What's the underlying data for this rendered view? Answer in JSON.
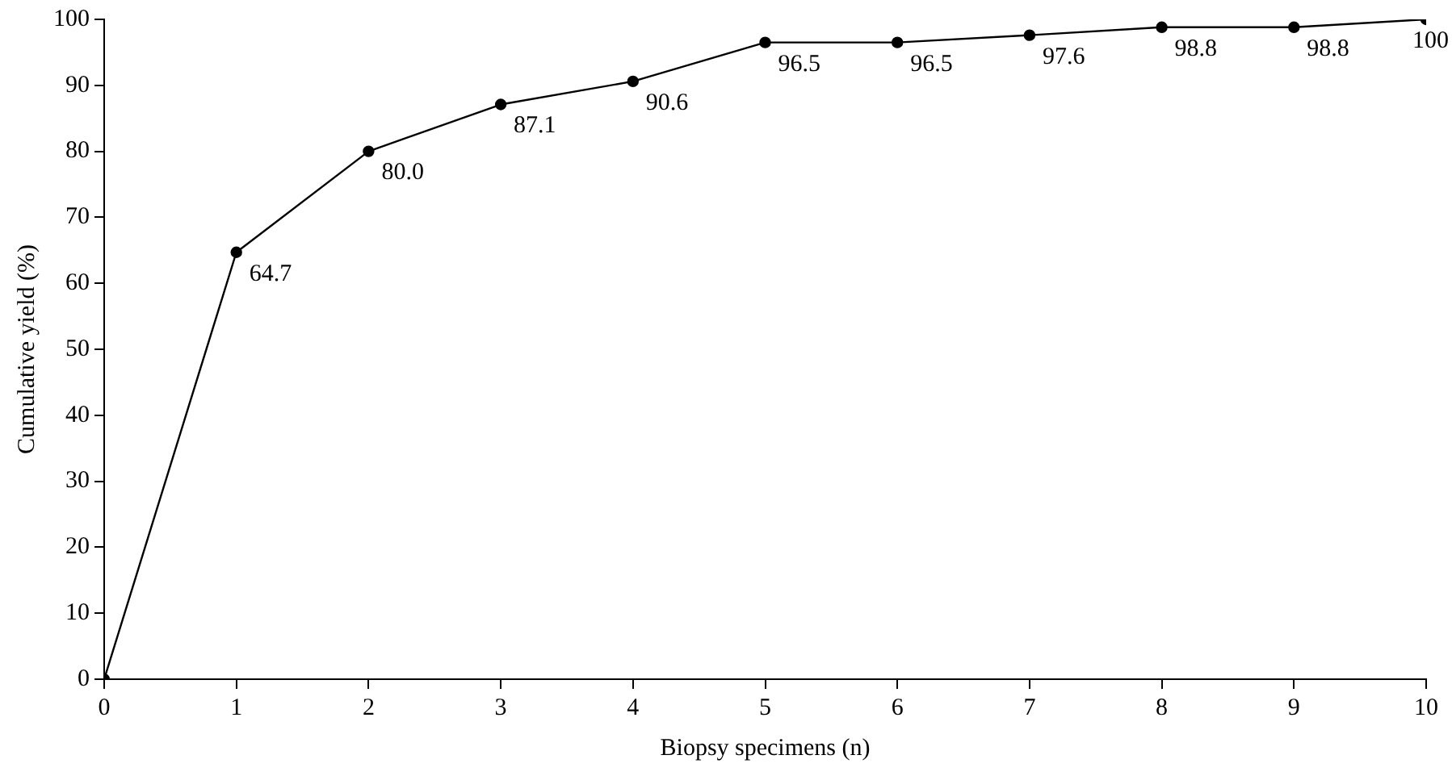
{
  "chart_data": {
    "type": "line",
    "xlabel": "Biopsy specimens (n)",
    "ylabel": "Cumulative yield (%)",
    "x": [
      0,
      1,
      2,
      3,
      4,
      5,
      6,
      7,
      8,
      9,
      10
    ],
    "values": [
      0,
      64.7,
      80.0,
      87.1,
      90.6,
      96.5,
      96.5,
      97.6,
      98.8,
      98.8,
      100
    ],
    "value_labels": [
      null,
      "64.7",
      "80.0",
      "87.1",
      "90.6",
      "96.5",
      "96.5",
      "97.6",
      "98.8",
      "98.8",
      "100"
    ],
    "color": "#000000",
    "marker": "circle",
    "line_style": "solid",
    "grid": false,
    "legend": false,
    "xlim": [
      0,
      10
    ],
    "xticks": [
      0,
      1,
      2,
      3,
      4,
      5,
      6,
      7,
      8,
      9,
      10
    ],
    "ylim": [
      0,
      100
    ],
    "yticks": [
      0,
      10,
      20,
      30,
      40,
      50,
      60,
      70,
      80,
      90,
      100
    ]
  }
}
